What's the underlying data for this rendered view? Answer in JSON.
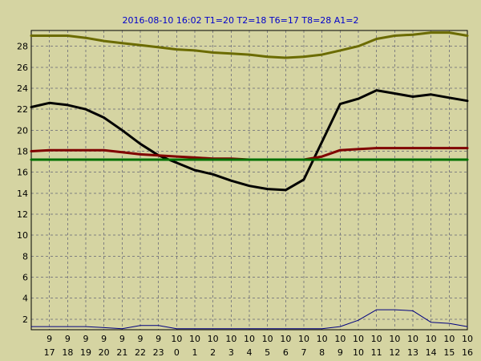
{
  "chart_data": {
    "type": "line",
    "title": "2016-08-10 16:02  T1=20 T2=18 T6=17 T8=28 A1=2",
    "xlabel": "",
    "ylabel": "",
    "ylim": [
      1,
      29.5
    ],
    "grid": true,
    "y_ticks": [
      2,
      4,
      6,
      8,
      10,
      12,
      14,
      16,
      18,
      20,
      22,
      24,
      26,
      28
    ],
    "x_ticks": [
      {
        "day": "9",
        "hour": "17"
      },
      {
        "day": "9",
        "hour": "18"
      },
      {
        "day": "9",
        "hour": "19"
      },
      {
        "day": "9",
        "hour": "20"
      },
      {
        "day": "9",
        "hour": "21"
      },
      {
        "day": "9",
        "hour": "22"
      },
      {
        "day": "9",
        "hour": "23"
      },
      {
        "day": "10",
        "hour": "0"
      },
      {
        "day": "10",
        "hour": "1"
      },
      {
        "day": "10",
        "hour": "2"
      },
      {
        "day": "10",
        "hour": "3"
      },
      {
        "day": "10",
        "hour": "4"
      },
      {
        "day": "10",
        "hour": "5"
      },
      {
        "day": "10",
        "hour": "6"
      },
      {
        "day": "10",
        "hour": "7"
      },
      {
        "day": "10",
        "hour": "8"
      },
      {
        "day": "10",
        "hour": "9"
      },
      {
        "day": "10",
        "hour": "10"
      },
      {
        "day": "10",
        "hour": "11"
      },
      {
        "day": "10",
        "hour": "12"
      },
      {
        "day": "10",
        "hour": "13"
      },
      {
        "day": "10",
        "hour": "14"
      },
      {
        "day": "10",
        "hour": "15"
      },
      {
        "day": "10",
        "hour": "16"
      }
    ],
    "series": [
      {
        "key": "T8",
        "color": "#6b6b00",
        "width": 3,
        "x": [
          "9 16:00",
          "9 17:00",
          "9 18:00",
          "9 19:00",
          "9 20:00",
          "9 21:00",
          "9 22:00",
          "9 23:00",
          "10 0:00",
          "10 1:00",
          "10 2:00",
          "10 3:00",
          "10 4:00",
          "10 5:00",
          "10 6:00",
          "10 7:00",
          "10 8:00",
          "10 9:00",
          "10 10:00",
          "10 11:00",
          "10 12:00",
          "10 13:00",
          "10 14:00",
          "10 15:00",
          "10 16:00"
        ],
        "values": [
          29.0,
          29.0,
          29.0,
          28.8,
          28.5,
          28.3,
          28.1,
          27.9,
          27.7,
          27.6,
          27.4,
          27.3,
          27.2,
          27.0,
          26.9,
          27.0,
          27.2,
          27.6,
          28.0,
          28.7,
          29.0,
          29.1,
          29.3,
          29.3,
          29.0
        ]
      },
      {
        "key": "T1",
        "color": "#000000",
        "width": 3,
        "x": [
          "9 16:00",
          "9 17:00",
          "9 18:00",
          "9 19:00",
          "9 20:00",
          "9 21:00",
          "9 22:00",
          "9 23:00",
          "10 0:00",
          "10 1:00",
          "10 2:00",
          "10 3:00",
          "10 4:00",
          "10 5:00",
          "10 6:00",
          "10 7:00",
          "10 8:00",
          "10 9:00",
          "10 10:00",
          "10 11:00",
          "10 12:00",
          "10 13:00",
          "10 14:00",
          "10 15:00",
          "10 16:00"
        ],
        "values": [
          22.2,
          22.6,
          22.4,
          22.0,
          21.2,
          20.0,
          18.7,
          17.6,
          16.9,
          16.2,
          15.8,
          15.2,
          14.7,
          14.4,
          14.3,
          15.3,
          18.9,
          22.5,
          23.0,
          23.8,
          23.5,
          23.2,
          23.4,
          23.1,
          22.8
        ]
      },
      {
        "key": "T2",
        "color": "#800000",
        "width": 3,
        "x": [
          "9 16:00",
          "9 17:00",
          "9 18:00",
          "9 19:00",
          "9 20:00",
          "9 21:00",
          "9 22:00",
          "9 23:00",
          "10 0:00",
          "10 1:00",
          "10 2:00",
          "10 3:00",
          "10 4:00",
          "10 5:00",
          "10 6:00",
          "10 7:00",
          "10 8:00",
          "10 9:00",
          "10 10:00",
          "10 11:00",
          "10 12:00",
          "10 13:00",
          "10 14:00",
          "10 15:00",
          "10 16:00"
        ],
        "values": [
          18.0,
          18.1,
          18.1,
          18.1,
          18.1,
          17.9,
          17.7,
          17.6,
          17.5,
          17.4,
          17.3,
          17.3,
          17.2,
          17.2,
          17.2,
          17.2,
          17.5,
          18.1,
          18.2,
          18.3,
          18.3,
          18.3,
          18.3,
          18.3,
          18.3
        ]
      },
      {
        "key": "T6",
        "color": "#007000",
        "width": 3,
        "x": [
          "9 16:00",
          "10 16:00"
        ],
        "values": [
          17.2,
          17.2
        ]
      },
      {
        "key": "A1",
        "color": "#000080",
        "width": 1,
        "x": [
          "9 16:00",
          "9 17:00",
          "9 18:00",
          "9 19:00",
          "9 20:00",
          "9 21:00",
          "9 22:00",
          "9 23:00",
          "10 0:00",
          "10 1:00",
          "10 2:00",
          "10 3:00",
          "10 4:00",
          "10 5:00",
          "10 6:00",
          "10 7:00",
          "10 8:00",
          "10 9:00",
          "10 10:00",
          "10 11:00",
          "10 12:00",
          "10 13:00",
          "10 14:00",
          "10 15:00",
          "10 16:00"
        ],
        "values": [
          1.3,
          1.3,
          1.3,
          1.3,
          1.2,
          1.1,
          1.4,
          1.4,
          1.1,
          1.1,
          1.1,
          1.1,
          1.1,
          1.1,
          1.1,
          1.1,
          1.1,
          1.3,
          1.9,
          2.9,
          2.9,
          2.8,
          1.7,
          1.6,
          1.3
        ]
      }
    ]
  },
  "colors": {
    "background": "#d5d4a2",
    "plot_background": "#d5d4a2",
    "grid": "#808080",
    "title": "#0000cc"
  }
}
